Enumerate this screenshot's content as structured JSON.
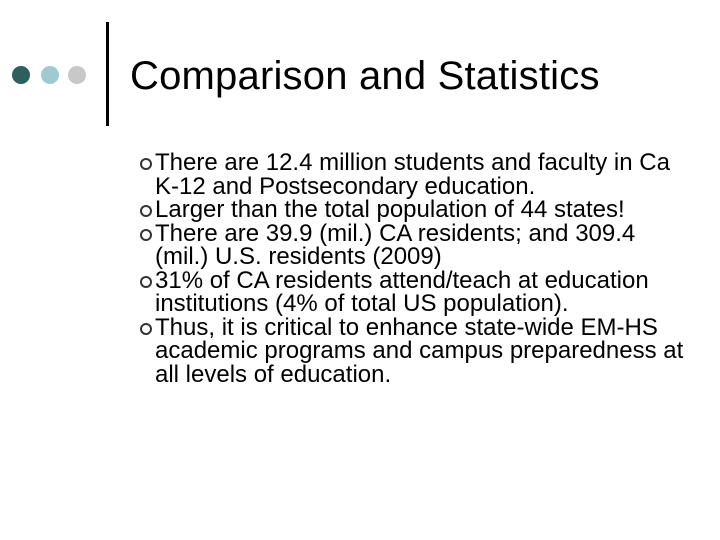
{
  "slide": {
    "title": "Comparison and Statistics",
    "decoration": {
      "dot_colors": [
        "#2e5f5f",
        "#9fcad2",
        "#c8c8c8"
      ],
      "divider_color": "#000000"
    },
    "bullet_icon": "hollow-circle-bullet-icon",
    "bullets": [
      "There are 12.4 million students and faculty in Ca K-12 and Postsecondary education.",
      "Larger than the total population of 44 states!",
      "There are 39.9 (mil.) CA residents; and 309.4 (mil.) U.S. residents (2009)",
      "31% of CA residents attend/teach at education institutions (4% of total US population).",
      "Thus, it is critical to enhance state-wide EM-HS academic programs and campus preparedness at all levels of education."
    ]
  }
}
